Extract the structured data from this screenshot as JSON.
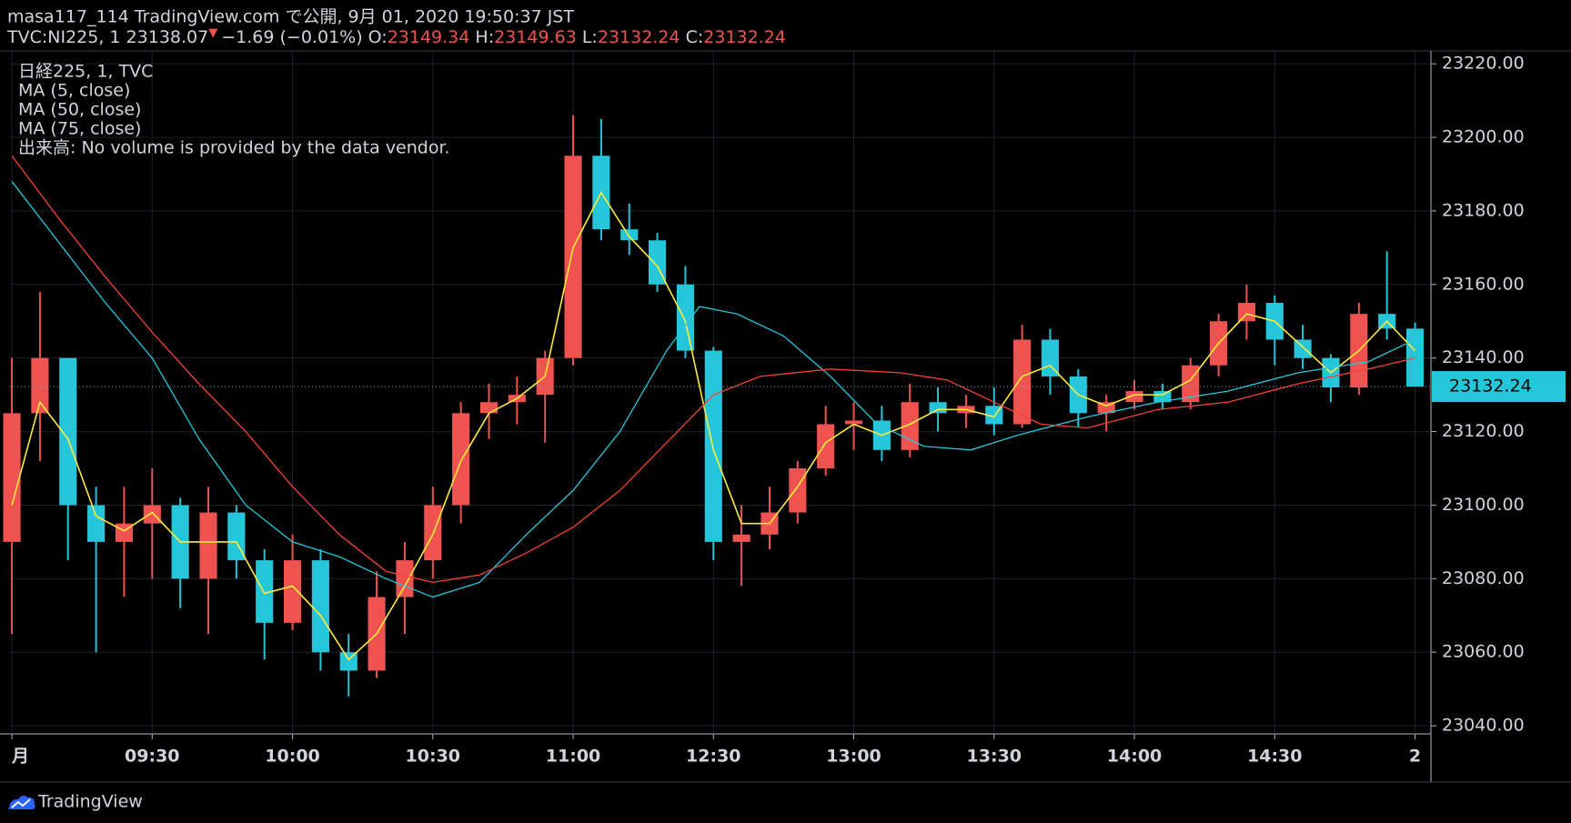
{
  "header": {
    "publisher": "masa117_114 TradingView.com で公開, 9月 01, 2020 19:50:37 JST",
    "symbol": "TVC:NI225, 1",
    "last": "23138.07",
    "change_arrow": "▼",
    "change": "−1.69 (−0.01%)",
    "ohlc": [
      {
        "label": "O:",
        "value": "23149.34"
      },
      {
        "label": "H:",
        "value": "23149.63"
      },
      {
        "label": "L:",
        "value": "23132.24"
      },
      {
        "label": "C:",
        "value": "23132.24"
      }
    ]
  },
  "legend": {
    "symbol": "日経225, 1, TVC",
    "volume_note": "出来高: No volume is provided by the data vendor."
  },
  "footer": {
    "brand": "TradingView"
  },
  "chart_data": {
    "type": "candlestick",
    "up_color": "#ef5350",
    "down_color": "#26c6da",
    "grid": true,
    "x": [
      0,
      6,
      12,
      18,
      24,
      30,
      36,
      42,
      48,
      54,
      60,
      66,
      72,
      78,
      84,
      90,
      96,
      102,
      108,
      114,
      120,
      126,
      132,
      138,
      144,
      150,
      156,
      162,
      168,
      174,
      180,
      186,
      192,
      198,
      204,
      210,
      216,
      222,
      228,
      234,
      240,
      246,
      252,
      258,
      264,
      270,
      276,
      282,
      288,
      294,
      300
    ],
    "open": [
      23090,
      23125,
      23140,
      23100,
      23090,
      23095,
      23100,
      23080,
      23098,
      23085,
      23068,
      23085,
      23060,
      23055,
      23075,
      23085,
      23100,
      23125,
      23128,
      23130,
      23140,
      23195,
      23175,
      23172,
      23160,
      23142,
      23090,
      23092,
      23098,
      23110,
      23122,
      23123,
      23115,
      23128,
      23125,
      23127,
      23122,
      23145,
      23135,
      23125,
      23128,
      23131,
      23128,
      23138,
      23150,
      23155,
      23145,
      23140,
      23132,
      23152,
      23148
    ],
    "high": [
      23140,
      23158,
      23140,
      23105,
      23105,
      23110,
      23102,
      23105,
      23100,
      23088,
      23092,
      23088,
      23065,
      23082,
      23090,
      23105,
      23128,
      23133,
      23135,
      23142,
      23206,
      23205,
      23182,
      23174,
      23165,
      23143,
      23100,
      23105,
      23112,
      23127,
      23128,
      23127,
      23133,
      23132,
      23130,
      23132,
      23149,
      23148,
      23137,
      23130,
      23134,
      23133,
      23140,
      23152,
      23160,
      23157,
      23149,
      23141,
      23155,
      23169,
      23149.63
    ],
    "low": [
      23065,
      23112,
      23085,
      23060,
      23075,
      23080,
      23072,
      23065,
      23080,
      23058,
      23066,
      23055,
      23048,
      23053,
      23065,
      23080,
      23095,
      23118,
      23122,
      23117,
      23138,
      23172,
      23168,
      23158,
      23140,
      23085,
      23078,
      23088,
      23095,
      23108,
      23115,
      23112,
      23113,
      23120,
      23121,
      23119,
      23121,
      23130,
      23121,
      23120,
      23126,
      23126,
      23126,
      23135,
      23145,
      23138,
      23137,
      23128,
      23130,
      23145,
      23132.24
    ],
    "close": [
      23125,
      23140,
      23100,
      23090,
      23095,
      23100,
      23080,
      23098,
      23085,
      23068,
      23085,
      23060,
      23055,
      23075,
      23085,
      23100,
      23125,
      23128,
      23130,
      23140,
      23195,
      23175,
      23172,
      23160,
      23142,
      23090,
      23092,
      23098,
      23110,
      23122,
      23123,
      23115,
      23128,
      23125,
      23127,
      23122,
      23145,
      23135,
      23125,
      23128,
      23131,
      23128,
      23138,
      23150,
      23155,
      23145,
      23140,
      23132,
      23152,
      23148,
      23132.24
    ],
    "overlays": [
      {
        "name": "MA (5, close)",
        "color": "#ffeb3b",
        "x": [
          0,
          6,
          12,
          18,
          24,
          30,
          36,
          42,
          48,
          54,
          60,
          66,
          72,
          78,
          84,
          90,
          96,
          102,
          108,
          114,
          120,
          126,
          132,
          138,
          144,
          150,
          156,
          162,
          168,
          174,
          180,
          186,
          192,
          198,
          204,
          210,
          216,
          222,
          228,
          234,
          240,
          246,
          252,
          258,
          264,
          270,
          276,
          282,
          288,
          294,
          300
        ],
        "values": [
          23100,
          23128,
          23118,
          23097,
          23093,
          23098,
          23090,
          23090,
          23090,
          23076,
          23078,
          23070,
          23058,
          23065,
          23078,
          23092,
          23112,
          23125,
          23129,
          23135,
          23170,
          23185,
          23173,
          23165,
          23150,
          23115,
          23095,
          23095,
          23105,
          23117,
          23122,
          23119,
          23122,
          23126,
          23126,
          23124,
          23135,
          23138,
          23130,
          23127,
          23130,
          23130,
          23134,
          23144,
          23152,
          23150,
          23143,
          23136,
          23142,
          23150,
          23142
        ]
      },
      {
        "name": "MA (50, close)",
        "color": "#26c6da",
        "x": [
          0,
          20,
          30,
          40,
          50,
          60,
          70,
          80,
          90,
          100,
          110,
          120,
          130,
          140,
          147,
          155,
          165,
          175,
          185,
          195,
          205,
          215,
          230,
          245,
          260,
          275,
          290,
          300
        ],
        "values": [
          23188,
          23155,
          23140,
          23118,
          23100,
          23090,
          23086,
          23080,
          23075,
          23079,
          23092,
          23104,
          23120,
          23142,
          23154,
          23152,
          23146,
          23135,
          23122,
          23116,
          23115,
          23119,
          23124,
          23128,
          23131,
          23136,
          23139,
          23145
        ]
      },
      {
        "name": "MA (75, close)",
        "color": "#f44336",
        "x": [
          0,
          10,
          20,
          30,
          40,
          50,
          60,
          70,
          80,
          90,
          100,
          110,
          120,
          130,
          140,
          150,
          160,
          175,
          190,
          200,
          210,
          220,
          230,
          245,
          260,
          275,
          290,
          300
        ],
        "values": [
          23195,
          23178,
          23162,
          23147,
          23133,
          23120,
          23105,
          23092,
          23082,
          23079,
          23081,
          23087,
          23094,
          23104,
          23117,
          23130,
          23135,
          23137,
          23136,
          23134,
          23128,
          23122,
          23121,
          23126,
          23128,
          23133,
          23137,
          23140
        ]
      }
    ],
    "last_price": {
      "value": 23132.24,
      "label": "23132.24"
    },
    "xlim": [
      -0.4,
      303.4
    ],
    "xticks": [
      {
        "value": 0,
        "label": "月"
      },
      {
        "value": 30,
        "label": "09:30"
      },
      {
        "value": 60,
        "label": "10:00"
      },
      {
        "value": 90,
        "label": "10:30"
      },
      {
        "value": 120,
        "label": "11:00"
      },
      {
        "value": 150,
        "label": "12:30"
      },
      {
        "value": 180,
        "label": "13:00"
      },
      {
        "value": 210,
        "label": "13:30"
      },
      {
        "value": 240,
        "label": "14:00"
      },
      {
        "value": 270,
        "label": "14:30"
      },
      {
        "value": 300,
        "label": "2"
      }
    ],
    "ylim": [
      23037.8,
      23223.5
    ],
    "yticks": [
      {
        "value": 23040,
        "label": "23040.00"
      },
      {
        "value": 23060,
        "label": "23060.00"
      },
      {
        "value": 23080,
        "label": "23080.00"
      },
      {
        "value": 23100,
        "label": "23100.00"
      },
      {
        "value": 23120,
        "label": "23120.00"
      },
      {
        "value": 23140,
        "label": "23140.00"
      },
      {
        "value": 23160,
        "label": "23160.00"
      },
      {
        "value": 23180,
        "label": "23180.00"
      },
      {
        "value": 23200,
        "label": "23200.00"
      },
      {
        "value": 23220,
        "label": "23220.00"
      }
    ]
  }
}
